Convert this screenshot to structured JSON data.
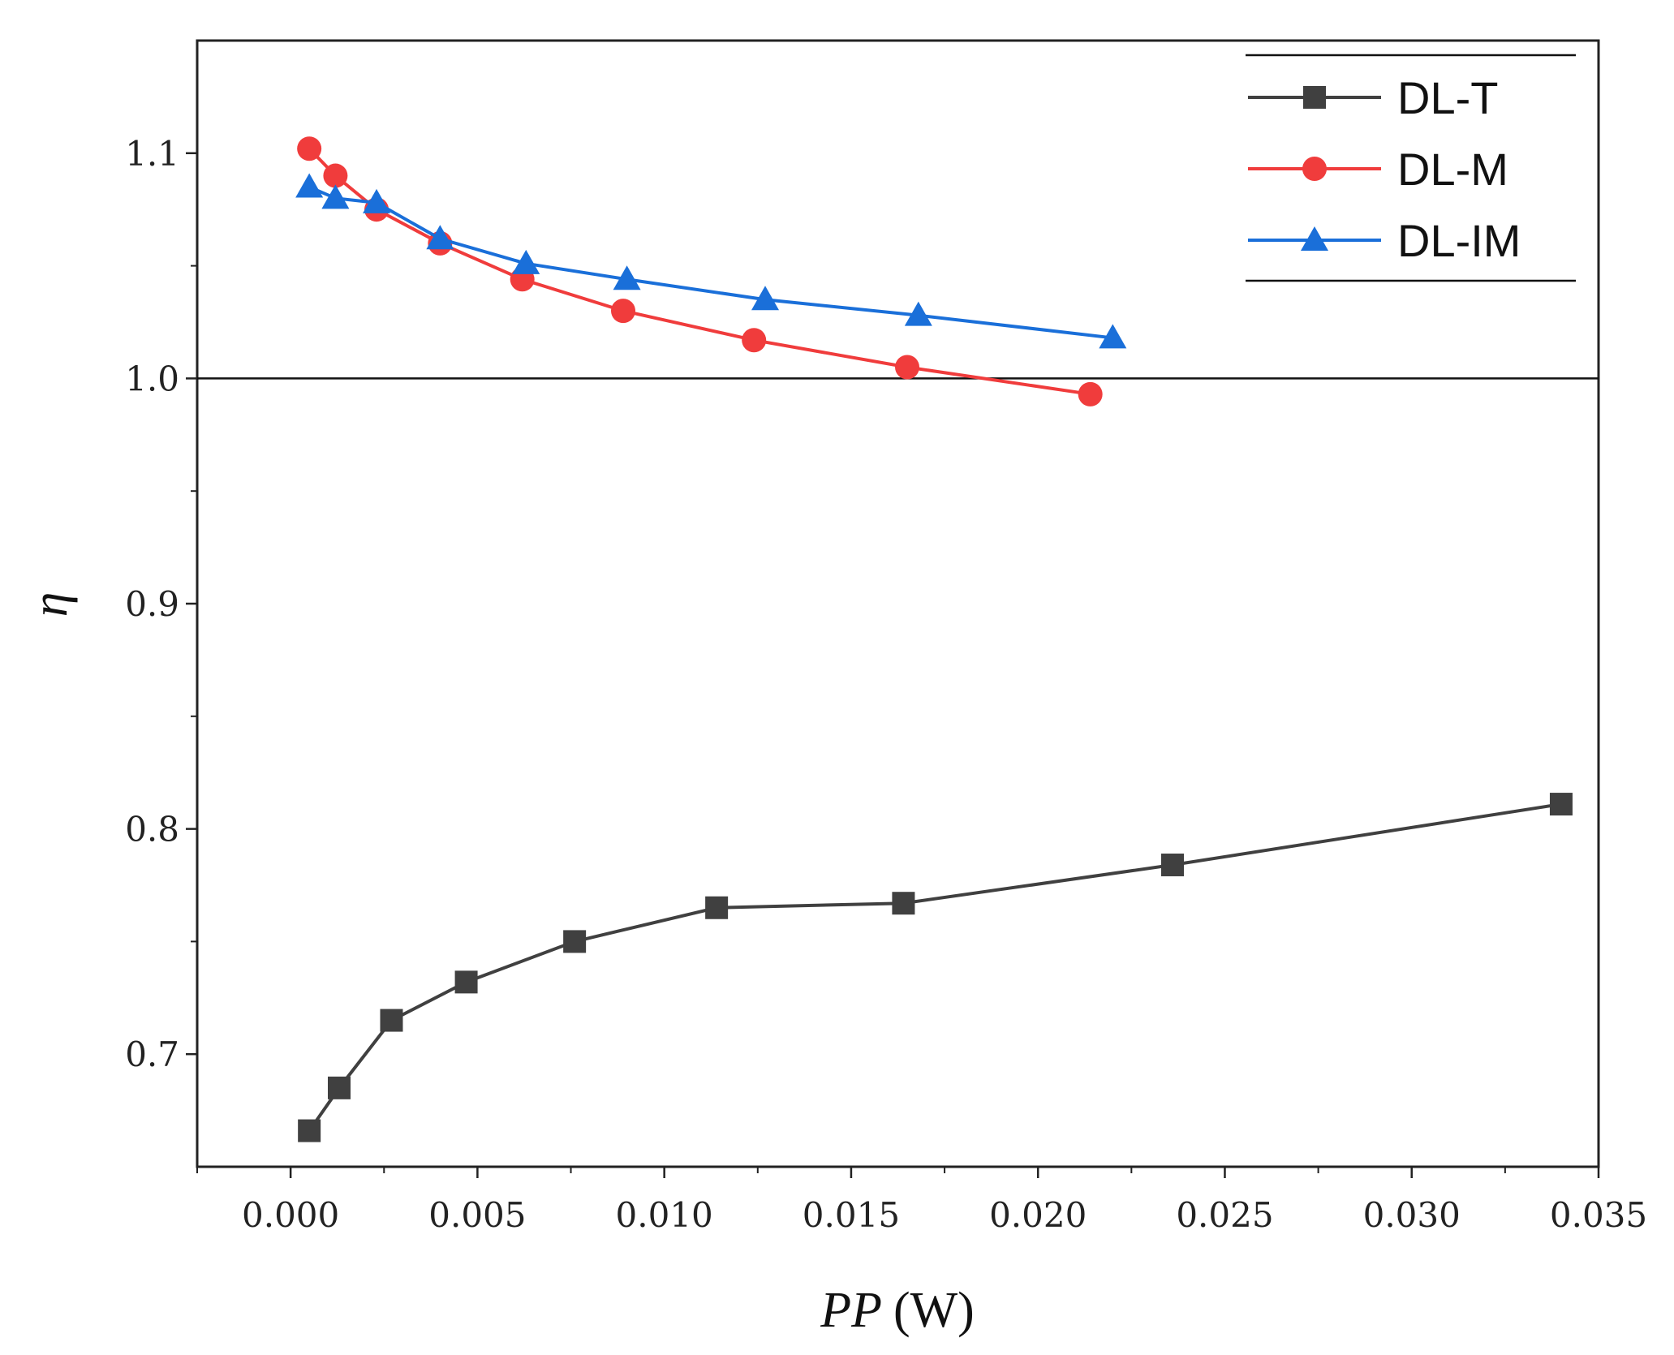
{
  "chart_data": {
    "type": "line",
    "title": "",
    "xlabel": {
      "symbol": "PP",
      "unit": "(W)"
    },
    "ylabel": "η",
    "xlim": [
      -0.0025,
      0.035
    ],
    "ylim": [
      0.65,
      1.15
    ],
    "x_ticks": [
      0.0,
      0.005,
      0.01,
      0.015,
      0.02,
      0.025,
      0.03,
      0.035
    ],
    "x_tick_labels": [
      "0.000",
      "0.005",
      "0.010",
      "0.015",
      "0.020",
      "0.025",
      "0.030",
      "0.035"
    ],
    "y_ticks": [
      0.7,
      0.8,
      0.9,
      1.0,
      1.1
    ],
    "y_tick_labels": [
      "0.7",
      "0.8",
      "0.9",
      "1.0",
      "1.1"
    ],
    "y_minor_ticks": [
      0.75,
      0.85,
      0.95,
      1.05
    ],
    "x_minor_ticks": [
      -0.0025,
      0.0025,
      0.0075,
      0.0125,
      0.0175,
      0.0225,
      0.0275,
      0.0325
    ],
    "reference_line": {
      "y": 1.0
    },
    "grid": false,
    "legend_position": "top-right",
    "series": [
      {
        "name": "DL-T",
        "color": "#404040",
        "marker": "square",
        "x": [
          0.0005,
          0.0013,
          0.0027,
          0.0047,
          0.0076,
          0.0114,
          0.0164,
          0.0236,
          0.034
        ],
        "y": [
          0.666,
          0.685,
          0.715,
          0.732,
          0.75,
          0.765,
          0.767,
          0.784,
          0.811
        ]
      },
      {
        "name": "DL-M",
        "color": "#f03c3c",
        "marker": "circle",
        "x": [
          0.0005,
          0.0012,
          0.0023,
          0.004,
          0.0062,
          0.0089,
          0.0124,
          0.0165,
          0.0214
        ],
        "y": [
          1.102,
          1.09,
          1.075,
          1.06,
          1.044,
          1.03,
          1.017,
          1.005,
          0.993
        ]
      },
      {
        "name": "DL-IM",
        "color": "#1a6fd9",
        "marker": "triangle",
        "x": [
          0.0005,
          0.0012,
          0.0023,
          0.004,
          0.0063,
          0.009,
          0.0127,
          0.0168,
          0.022
        ],
        "y": [
          1.085,
          1.08,
          1.078,
          1.062,
          1.051,
          1.044,
          1.035,
          1.028,
          1.018
        ]
      }
    ]
  }
}
